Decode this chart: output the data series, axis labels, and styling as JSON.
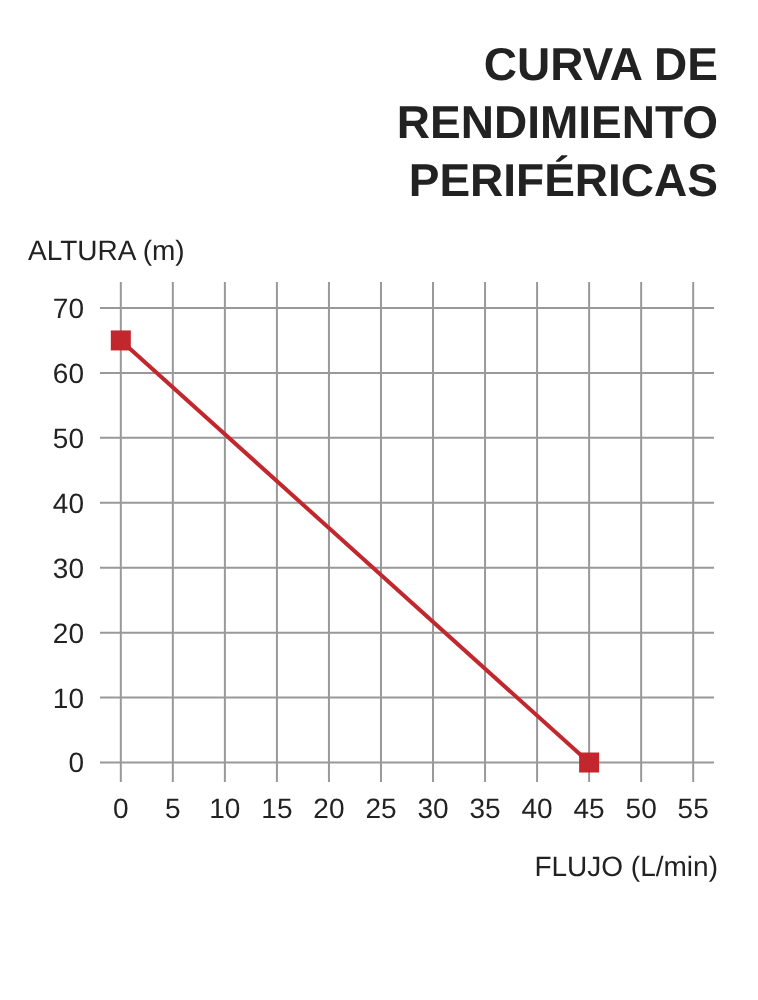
{
  "chart_data": {
    "type": "line",
    "title": "CURVA DE RENDIMIENTO PERIFÉRICAS",
    "xlabel": "FLUJO (L/min)",
    "ylabel": "ALTURA (m)",
    "x": [
      0,
      45
    ],
    "series": [
      {
        "color": "#c1272d",
        "values": [
          65,
          0
        ]
      }
    ],
    "xlim": [
      -2,
      57
    ],
    "xticks": [
      0,
      5,
      10,
      15,
      20,
      25,
      30,
      35,
      40,
      45,
      50,
      55
    ],
    "ylim": [
      -3,
      74
    ],
    "yticks": [
      0,
      10,
      20,
      30,
      40,
      50,
      60,
      70
    ],
    "grid": true,
    "marker": "square",
    "line_style": "solid"
  }
}
